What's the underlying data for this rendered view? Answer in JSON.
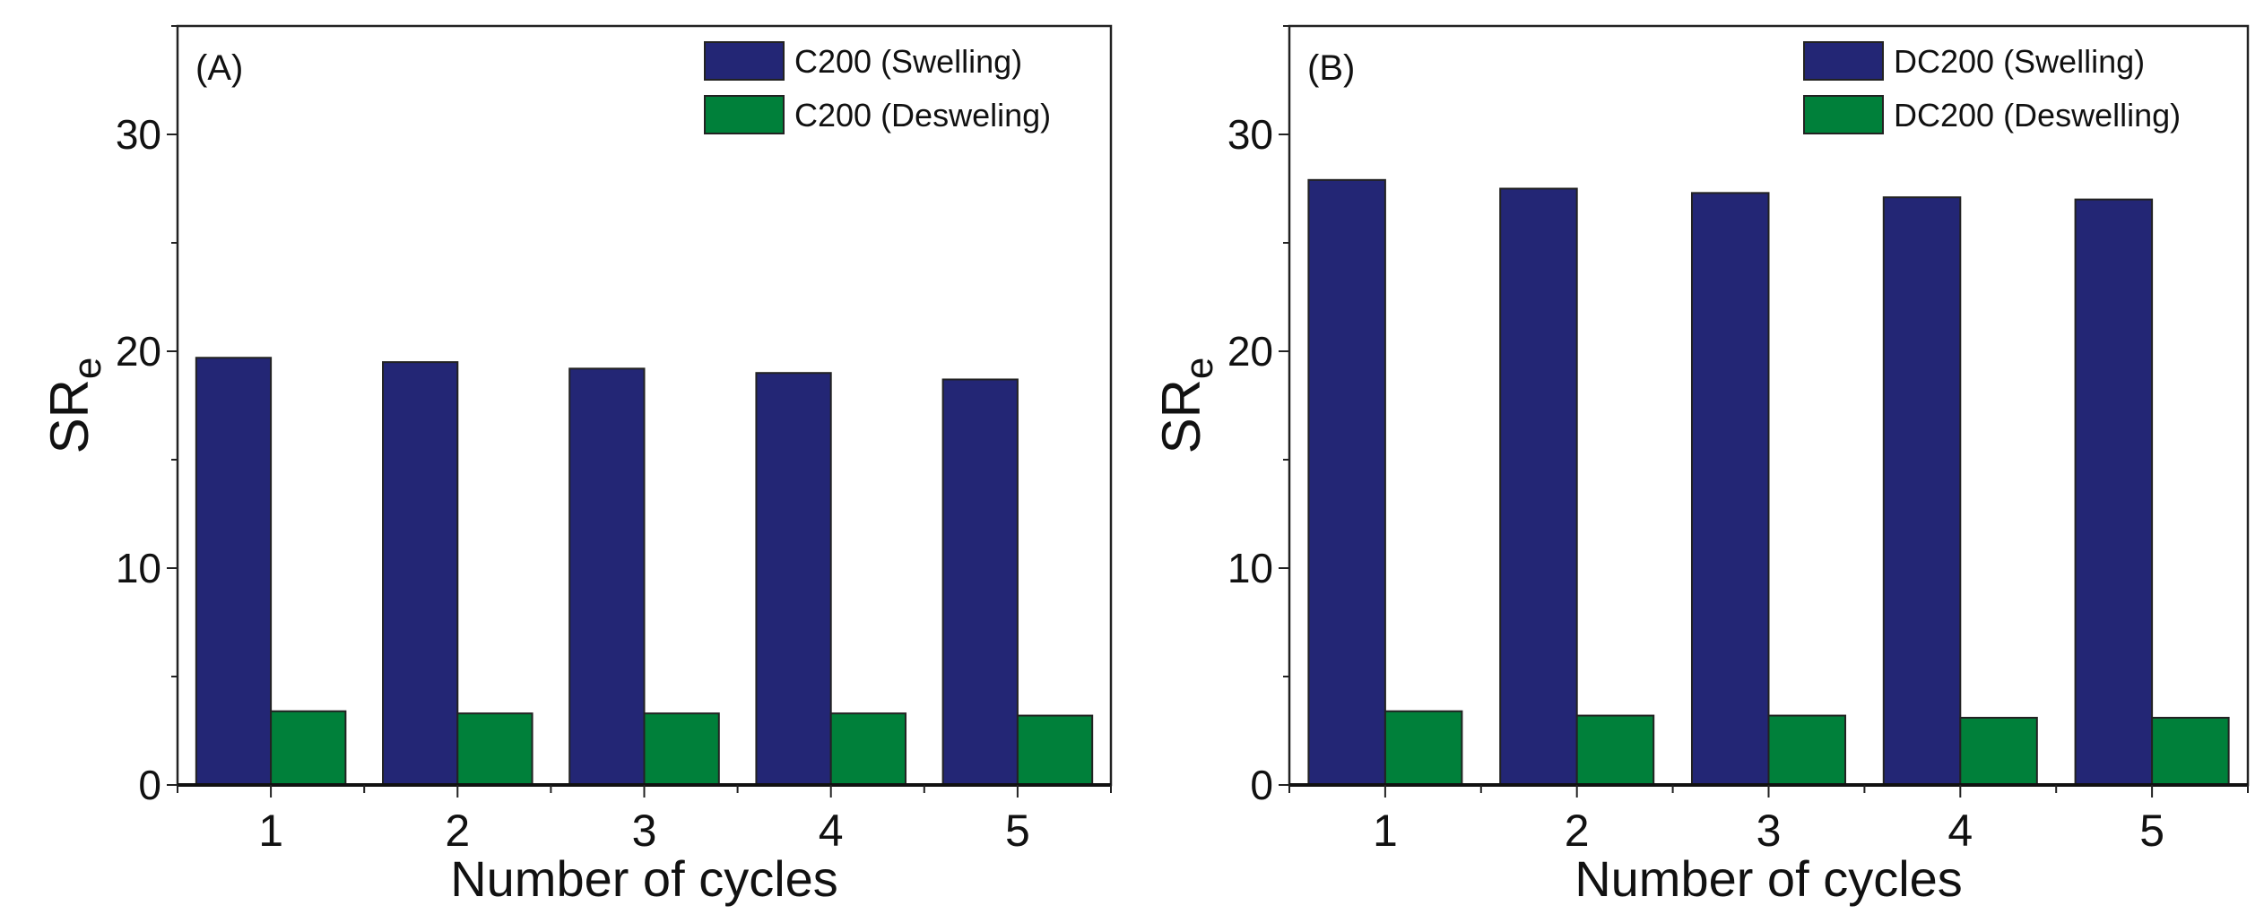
{
  "chart_data": [
    {
      "type": "bar",
      "panel_label": "(A)",
      "xlabel": "Number of cycles",
      "ylabel": {
        "main": "SR",
        "sub": "e"
      },
      "categories": [
        "1",
        "2",
        "3",
        "4",
        "5"
      ],
      "xlim": [
        0.5,
        5.5
      ],
      "ylim": [
        0,
        35
      ],
      "yticks": [
        0,
        10,
        20,
        30
      ],
      "grid": false,
      "legend_position": "top-right",
      "series": [
        {
          "name": "C200 (Swelling)",
          "color": "#232675",
          "values": [
            19.7,
            19.5,
            19.2,
            19.0,
            18.7
          ]
        },
        {
          "name": "C200 (Desweling)",
          "color": "#00803a",
          "values": [
            3.4,
            3.3,
            3.3,
            3.3,
            3.2
          ]
        }
      ]
    },
    {
      "type": "bar",
      "panel_label": "(B)",
      "xlabel": "Number of cycles",
      "ylabel": {
        "main": "SR",
        "sub": "e"
      },
      "categories": [
        "1",
        "2",
        "3",
        "4",
        "5"
      ],
      "xlim": [
        0.5,
        5.5
      ],
      "ylim": [
        0,
        35
      ],
      "yticks": [
        0,
        10,
        20,
        30
      ],
      "grid": false,
      "legend_position": "top-right",
      "series": [
        {
          "name": "DC200 (Swelling)",
          "color": "#232675",
          "values": [
            27.9,
            27.5,
            27.3,
            27.1,
            27.0
          ]
        },
        {
          "name": "DC200 (Deswelling)",
          "color": "#00803a",
          "values": [
            3.4,
            3.2,
            3.2,
            3.1,
            3.1
          ]
        }
      ]
    }
  ]
}
